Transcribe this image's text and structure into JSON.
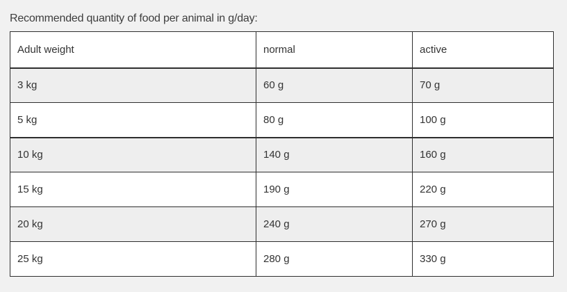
{
  "caption": "Recommended quantity of food per animal in g/day:",
  "table": {
    "headers": [
      "Adult weight",
      "normal",
      "active"
    ],
    "rows": [
      [
        "3 kg",
        "60 g",
        "70 g"
      ],
      [
        "5 kg",
        "80 g",
        "100 g"
      ],
      [
        "10 kg",
        "140 g",
        "160 g"
      ],
      [
        "15 kg",
        "190 g",
        "220 g"
      ],
      [
        "20 kg",
        "240 g",
        "270 g"
      ],
      [
        "25 kg",
        "280 g",
        "330 g"
      ]
    ]
  },
  "colors": {
    "page_background": "#f1f1f1",
    "row_shaded": "#eeeeee",
    "row_plain": "#ffffff",
    "border": "#2e2e2e",
    "text": "#333333"
  }
}
